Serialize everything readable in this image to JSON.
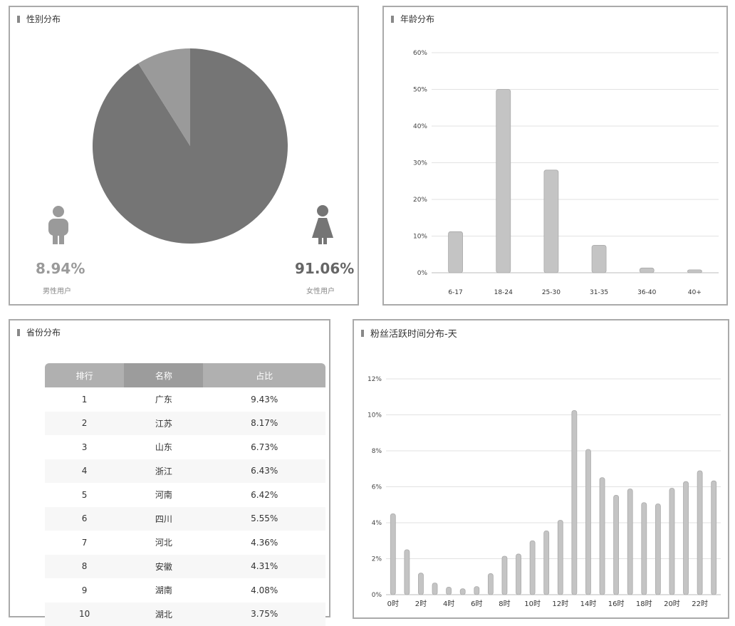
{
  "gender": {
    "title": "性别分布",
    "male": {
      "percent": "8.94%",
      "label": "男性用户",
      "color": "#9a9a9a",
      "icon": "male-user-icon"
    },
    "female": {
      "percent": "91.06%",
      "label": "女性用户",
      "color": "#757575",
      "icon": "female-user-icon"
    }
  },
  "age": {
    "title": "年龄分布"
  },
  "province": {
    "title": "省份分布",
    "columns": [
      "排行",
      "名称",
      "占比"
    ],
    "rows": [
      [
        "1",
        "广东",
        "9.43%"
      ],
      [
        "2",
        "江苏",
        "8.17%"
      ],
      [
        "3",
        "山东",
        "6.73%"
      ],
      [
        "4",
        "浙江",
        "6.43%"
      ],
      [
        "5",
        "河南",
        "6.42%"
      ],
      [
        "6",
        "四川",
        "5.55%"
      ],
      [
        "7",
        "河北",
        "4.36%"
      ],
      [
        "8",
        "安徽",
        "4.31%"
      ],
      [
        "9",
        "湖南",
        "4.08%"
      ],
      [
        "10",
        "湖北",
        "3.75%"
      ]
    ]
  },
  "activity": {
    "title": "粉丝活跃时间分布-天"
  },
  "chart_data": [
    {
      "type": "pie",
      "categories": [
        "男性用户",
        "女性用户"
      ],
      "values": [
        8.94,
        91.06
      ],
      "colors": [
        "#9a9a9a",
        "#757575"
      ]
    },
    {
      "type": "bar",
      "categories": [
        "6-17",
        "18-24",
        "25-30",
        "31-35",
        "36-40",
        "40+"
      ],
      "values": [
        11.2,
        50,
        28,
        7.5,
        1.3,
        0.8
      ],
      "ylim": [
        0,
        60
      ],
      "yticks": [
        "0%",
        "10%",
        "20%",
        "30%",
        "40%",
        "50%",
        "60%"
      ],
      "grid": true,
      "bar_color": "#c4c4c4"
    },
    {
      "type": "bar",
      "categories": [
        "0时",
        "1时",
        "2时",
        "3时",
        "4时",
        "5时",
        "6时",
        "7时",
        "8时",
        "9时",
        "10时",
        "11时",
        "12时",
        "13时",
        "14时",
        "15时",
        "16时",
        "17时",
        "18时",
        "19时",
        "20时",
        "21时",
        "22时",
        "23时"
      ],
      "xtick_labels": [
        "0时",
        "2时",
        "4时",
        "6时",
        "8时",
        "10时",
        "12时",
        "14时",
        "16时",
        "18时",
        "20时",
        "22时"
      ],
      "values": [
        4.5,
        2.5,
        1.2,
        0.65,
        0.42,
        0.33,
        0.45,
        1.17,
        2.14,
        2.26,
        3.0,
        3.55,
        4.14,
        10.24,
        8.08,
        6.51,
        5.53,
        5.88,
        5.12,
        5.05,
        5.92,
        6.29,
        6.89,
        6.33
      ],
      "ylim": [
        0,
        12
      ],
      "yticks": [
        "0%",
        "2%",
        "4%",
        "6%",
        "8%",
        "10%",
        "12%"
      ],
      "grid": true,
      "bar_color": "#c4c4c4"
    }
  ]
}
